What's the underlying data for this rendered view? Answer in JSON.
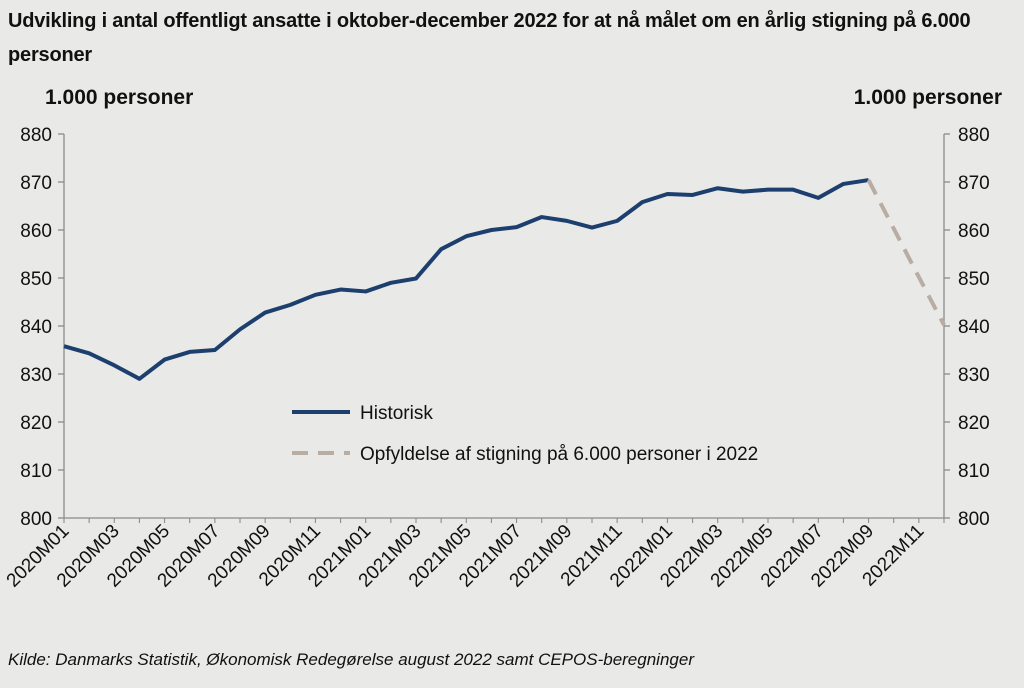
{
  "chart_data": {
    "type": "line",
    "title": "Udvikling i antal offentligt ansatte i oktober-december 2022 for at nå målet om en årlig stigning på 6.000 personer",
    "ylabel_left": "1.000 personer",
    "ylabel_right": "1.000 personer",
    "xlabel": "",
    "ylim": [
      800,
      880
    ],
    "yticks": [
      "800",
      "810",
      "820",
      "830",
      "840",
      "850",
      "860",
      "870",
      "880"
    ],
    "xtick_labels": [
      "2020M01",
      "2020M03",
      "2020M05",
      "2020M07",
      "2020M09",
      "2020M11",
      "2021M01",
      "2021M03",
      "2021M05",
      "2021M07",
      "2021M09",
      "2021M11",
      "2022M01",
      "2022M03",
      "2022M05",
      "2022M07",
      "2022M09",
      "2022M11"
    ],
    "x": [
      "2020M01",
      "2020M02",
      "2020M03",
      "2020M04",
      "2020M05",
      "2020M06",
      "2020M07",
      "2020M08",
      "2020M09",
      "2020M10",
      "2020M11",
      "2020M12",
      "2021M01",
      "2021M02",
      "2021M03",
      "2021M04",
      "2021M05",
      "2021M06",
      "2021M07",
      "2021M08",
      "2021M09",
      "2021M10",
      "2021M11",
      "2021M12",
      "2022M01",
      "2022M02",
      "2022M03",
      "2022M04",
      "2022M05",
      "2022M06",
      "2022M07",
      "2022M08",
      "2022M09",
      "2022M10",
      "2022M11",
      "2022M12"
    ],
    "grid": false,
    "legend_position": "center",
    "series": [
      {
        "name": "Historisk",
        "style": "solid",
        "color": "#1c3f6e",
        "values": [
          835.8,
          834.3,
          831.8,
          829.0,
          833.0,
          834.6,
          835.0,
          839.3,
          842.8,
          844.4,
          846.5,
          847.6,
          847.2,
          849.0,
          849.9,
          856.0,
          858.7,
          860.0,
          860.6,
          862.7,
          861.9,
          860.5,
          861.9,
          865.8,
          867.5,
          867.3,
          868.7,
          868.0,
          868.4,
          868.4,
          866.7,
          869.6,
          870.4,
          null,
          null,
          null
        ]
      },
      {
        "name": "Opfyldelse af stigning på 6.000 personer i 2022",
        "style": "dashed",
        "color": "#b9aca2",
        "values": [
          null,
          null,
          null,
          null,
          null,
          null,
          null,
          null,
          null,
          null,
          null,
          null,
          null,
          null,
          null,
          null,
          null,
          null,
          null,
          null,
          null,
          null,
          null,
          null,
          null,
          null,
          null,
          null,
          null,
          null,
          null,
          null,
          870.4,
          860.3,
          850.2,
          840.2
        ]
      }
    ]
  },
  "source": "Kilde: Danmarks Statistik, Økonomisk Redegørelse august 2022 samt CEPOS-beregninger"
}
